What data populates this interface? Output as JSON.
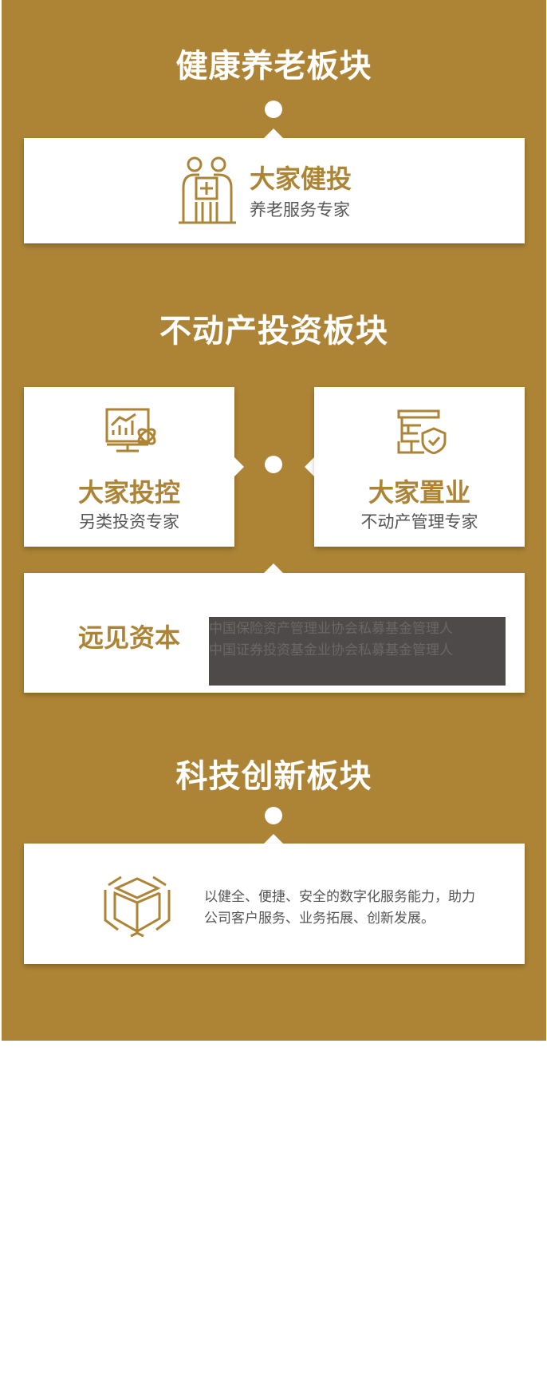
{
  "colors": {
    "gold": "#ad8435",
    "white": "#ffffff",
    "dark": "#4e4a49"
  },
  "health": {
    "title": "健康养老板块",
    "card": {
      "name": "大家健投",
      "subtitle": "养老服务专家",
      "icon": "elderly-care-icon"
    }
  },
  "realestate": {
    "title": "不动产投资板块",
    "left": {
      "name": "大家投控",
      "subtitle": "另类投资专家",
      "icon": "investment-chart-icon"
    },
    "right": {
      "name": "大家置业",
      "subtitle": "不动产管理专家",
      "icon": "building-shield-icon"
    },
    "bottom": {
      "name": "远见资本",
      "line1": "中国保险资产管理业协会私募基金管理人",
      "line2": "中国证券投资基金业协会私募基金管理人"
    }
  },
  "tech": {
    "title": "科技创新板块",
    "icon": "cube-icon",
    "description": "以健全、便捷、安全的数字化服务能力，助力公司客户服务、业务拓展、创新发展。"
  }
}
